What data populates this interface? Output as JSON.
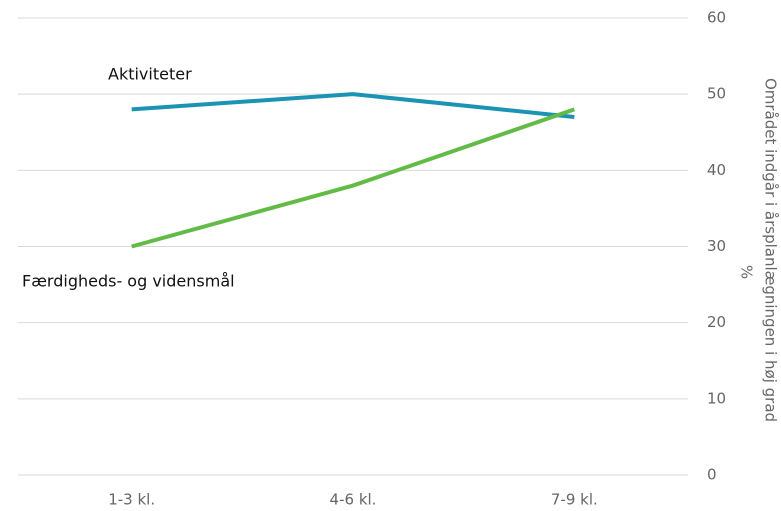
{
  "chart_data": {
    "type": "line",
    "categories": [
      "1-3 kl.",
      "4-6 kl.",
      "7-9 kl."
    ],
    "series": [
      {
        "name": "Aktiviteter",
        "color": "#1b93b3",
        "values": [
          48,
          50,
          47
        ]
      },
      {
        "name": "Færdigheds- og vidensmål",
        "color": "#62bb46",
        "values": [
          30,
          38,
          48
        ]
      }
    ],
    "ylabel": [
      "Området indgår i årsplanlægningen i høj grad",
      "%"
    ],
    "ylim": [
      0,
      60
    ],
    "yticks": [
      0,
      10,
      20,
      30,
      40,
      50,
      60
    ],
    "grid": true,
    "y_axis_side": "right"
  }
}
